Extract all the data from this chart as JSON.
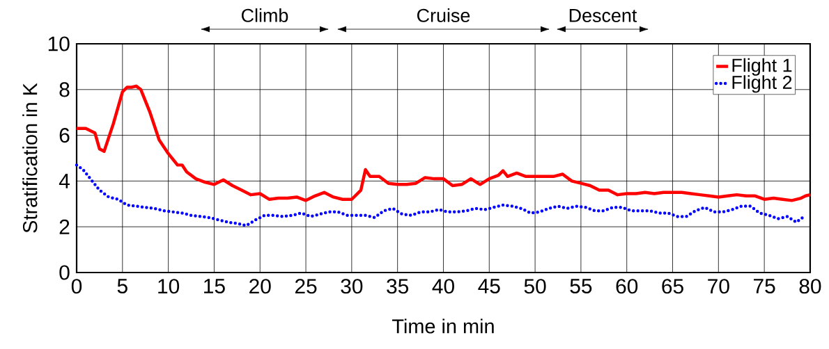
{
  "chart_data": {
    "type": "line",
    "xlabel": "Time in min",
    "ylabel": "Stratification in K",
    "xlim": [
      0,
      80
    ],
    "ylim": [
      0,
      10
    ],
    "xticks": [
      0,
      5,
      10,
      15,
      20,
      25,
      30,
      35,
      40,
      45,
      50,
      55,
      60,
      65,
      70,
      75,
      80
    ],
    "yticks": [
      0,
      2,
      4,
      6,
      8,
      10
    ],
    "grid": true,
    "legend": "top right",
    "marker": "none",
    "annotations": [
      "Climb",
      "Cruise",
      "Descent"
    ],
    "series": [
      {
        "name": "Flight 1",
        "color": "#ff0000",
        "line_style": "solid",
        "x": [
          0,
          1,
          2,
          2.5,
          3,
          4,
          5,
          5.5,
          6,
          6.5,
          7,
          8,
          9,
          10,
          11,
          11.5,
          12,
          13,
          14,
          15,
          16,
          17,
          18,
          19,
          20,
          21,
          22,
          23,
          24,
          25,
          26,
          27,
          28,
          29,
          30,
          31,
          31.5,
          32,
          33,
          34,
          35,
          36,
          37,
          38,
          39,
          40,
          41,
          42,
          43,
          44,
          45,
          46,
          46.5,
          47,
          48,
          49,
          50,
          52,
          53,
          54,
          55,
          56,
          57,
          58,
          59,
          60,
          61,
          62,
          63,
          64,
          65,
          66,
          67,
          68,
          69,
          70,
          71,
          72,
          73,
          74,
          75,
          76,
          77,
          78,
          79,
          79.5,
          80
        ],
        "values": [
          6.3,
          6.3,
          6.1,
          5.4,
          5.3,
          6.5,
          7.9,
          8.1,
          8.1,
          8.15,
          8.0,
          7.0,
          5.8,
          5.2,
          4.7,
          4.7,
          4.4,
          4.1,
          3.95,
          3.85,
          4.05,
          3.8,
          3.6,
          3.4,
          3.45,
          3.2,
          3.25,
          3.25,
          3.3,
          3.15,
          3.35,
          3.5,
          3.3,
          3.2,
          3.2,
          3.6,
          4.5,
          4.2,
          4.2,
          3.9,
          3.85,
          3.85,
          3.9,
          4.15,
          4.1,
          4.1,
          3.8,
          3.85,
          4.1,
          3.85,
          4.1,
          4.25,
          4.45,
          4.2,
          4.35,
          4.2,
          4.2,
          4.2,
          4.3,
          4.0,
          3.9,
          3.8,
          3.6,
          3.6,
          3.4,
          3.45,
          3.45,
          3.5,
          3.45,
          3.5,
          3.5,
          3.5,
          3.45,
          3.4,
          3.35,
          3.3,
          3.35,
          3.4,
          3.35,
          3.35,
          3.2,
          3.25,
          3.2,
          3.15,
          3.25,
          3.35,
          3.4
        ]
      },
      {
        "name": "Flight 2",
        "color": "#0000ff",
        "line_style": "dotted",
        "x": [
          0,
          0.7,
          1.5,
          2.5,
          3.5,
          4.5,
          5.5,
          6.5,
          7.5,
          8.5,
          9.5,
          10.5,
          11.5,
          12.5,
          13.5,
          14.5,
          15.5,
          16.5,
          17.5,
          18.5,
          19.5,
          20.5,
          21.5,
          22.5,
          23.5,
          24.5,
          25.5,
          26.5,
          27.5,
          28.5,
          29.5,
          30.5,
          31.5,
          32.5,
          33.5,
          34.5,
          35.5,
          36.5,
          37.5,
          38.5,
          39.5,
          40.5,
          41.5,
          42.5,
          43.5,
          44.5,
          45.5,
          46.5,
          47.5,
          48.5,
          49.5,
          50.5,
          51.5,
          52.5,
          53.5,
          54.5,
          55.5,
          56.5,
          57.5,
          58.5,
          59.5,
          60.5,
          61.5,
          62.5,
          63.5,
          64.5,
          65.5,
          66.5,
          67.5,
          68.5,
          69.5,
          70.5,
          71.5,
          72.5,
          73.5,
          74.5,
          75.5,
          76.5,
          77.5,
          78.5,
          79.5
        ],
        "values": [
          4.7,
          4.5,
          4.1,
          3.6,
          3.3,
          3.2,
          2.95,
          2.9,
          2.85,
          2.8,
          2.7,
          2.65,
          2.6,
          2.5,
          2.45,
          2.4,
          2.3,
          2.2,
          2.15,
          2.05,
          2.3,
          2.5,
          2.5,
          2.45,
          2.5,
          2.6,
          2.45,
          2.55,
          2.65,
          2.65,
          2.5,
          2.5,
          2.5,
          2.4,
          2.7,
          2.8,
          2.55,
          2.5,
          2.65,
          2.65,
          2.75,
          2.65,
          2.65,
          2.7,
          2.8,
          2.75,
          2.85,
          2.95,
          2.9,
          2.8,
          2.6,
          2.65,
          2.8,
          2.9,
          2.8,
          2.9,
          2.85,
          2.7,
          2.7,
          2.85,
          2.85,
          2.7,
          2.7,
          2.7,
          2.6,
          2.6,
          2.45,
          2.45,
          2.7,
          2.85,
          2.65,
          2.65,
          2.75,
          2.9,
          2.9,
          2.6,
          2.5,
          2.35,
          2.45,
          2.2,
          2.5
        ]
      }
    ]
  }
}
